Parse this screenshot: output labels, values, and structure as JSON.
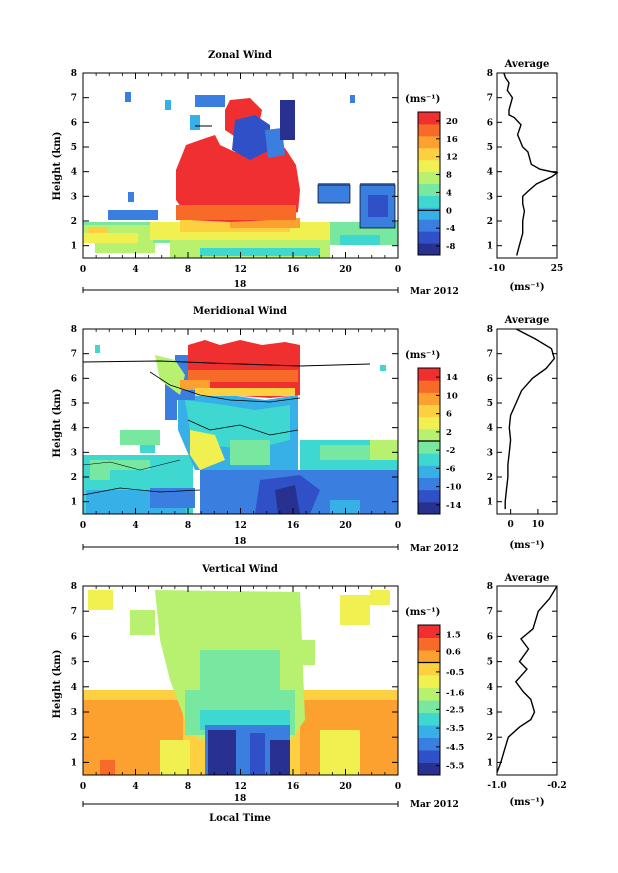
{
  "figure": {
    "footer_xlabel": "Local Time",
    "date_label": "Mar 2012",
    "day_label": "18"
  },
  "chart_data": [
    {
      "type": "heatmap",
      "title": "Zonal Wind",
      "xlabel": "",
      "ylabel": "Height (km)",
      "x_ticks": [
        "0",
        "4",
        "8",
        "12",
        "16",
        "20",
        "0"
      ],
      "x_range": [
        0,
        24
      ],
      "y_range": [
        0.5,
        8
      ],
      "y_ticks": [
        "1",
        "2",
        "3",
        "4",
        "5",
        "6",
        "7",
        "8"
      ],
      "colorbar": {
        "unit": "(ms⁻¹)",
        "ticks": [
          "20",
          "16",
          "12",
          "8",
          "4",
          "0",
          "-4",
          "-8"
        ],
        "range": [
          -10,
          22
        ],
        "colors": [
          "#283090",
          "#3050c8",
          "#3a7fe0",
          "#36b0e6",
          "#3ed8d0",
          "#78e8a0",
          "#b8f070",
          "#f0f050",
          "#fcd040",
          "#fca030",
          "#f86a28",
          "#f03030"
        ]
      },
      "profile": {
        "title": "Average",
        "x_ticks": [
          "-10",
          "25"
        ],
        "x_range": [
          -10,
          25
        ],
        "unit": "(ms⁻¹)",
        "points": [
          [
            1.5,
            0.6
          ],
          [
            3,
            1.0
          ],
          [
            5,
            1.5
          ],
          [
            5,
            2.0
          ],
          [
            6,
            2.4
          ],
          [
            5,
            2.7
          ],
          [
            5,
            3.0
          ],
          [
            8,
            3.2
          ],
          [
            13,
            3.5
          ],
          [
            22,
            3.8
          ],
          [
            25,
            3.95
          ],
          [
            15,
            4.1
          ],
          [
            10,
            4.3
          ],
          [
            8,
            4.8
          ],
          [
            5,
            5.0
          ],
          [
            2,
            5.5
          ],
          [
            4,
            5.9
          ],
          [
            0,
            6.2
          ],
          [
            -3,
            6.3
          ],
          [
            -3,
            6.5
          ],
          [
            -1,
            7.0
          ],
          [
            -4,
            7.3
          ],
          [
            -3,
            7.6
          ],
          [
            -5,
            7.8
          ],
          [
            -6,
            8.0
          ]
        ]
      }
    },
    {
      "type": "heatmap",
      "title": "Meridional Wind",
      "xlabel": "",
      "ylabel": "Height (km)",
      "x_ticks": [
        "0",
        "4",
        "8",
        "12",
        "16",
        "20",
        "0"
      ],
      "x_range": [
        0,
        24
      ],
      "y_range": [
        0.5,
        8
      ],
      "y_ticks": [
        "1",
        "2",
        "3",
        "4",
        "5",
        "6",
        "7",
        "8"
      ],
      "colorbar": {
        "unit": "(ms⁻¹)",
        "ticks": [
          "14",
          "10",
          "6",
          "2",
          "-2",
          "-6",
          "-10",
          "-14"
        ],
        "range": [
          -16,
          16
        ],
        "colors": [
          "#283090",
          "#3050c8",
          "#3a7fe0",
          "#36b0e6",
          "#3ed8d0",
          "#78e8a0",
          "#b8f070",
          "#f0f050",
          "#fcd040",
          "#fca030",
          "#f86a28",
          "#f03030"
        ]
      },
      "profile": {
        "title": "Average",
        "x_ticks": [
          "0",
          "10"
        ],
        "x_range": [
          -5,
          17
        ],
        "unit": "(ms⁻¹)",
        "points": [
          [
            -2,
            0.7
          ],
          [
            -2,
            1.0
          ],
          [
            -1.5,
            1.5
          ],
          [
            -1,
            2.0
          ],
          [
            -1,
            2.5
          ],
          [
            -0.5,
            3.0
          ],
          [
            0,
            3.5
          ],
          [
            -0.5,
            4.0
          ],
          [
            0,
            4.5
          ],
          [
            2,
            5.0
          ],
          [
            4,
            5.5
          ],
          [
            8,
            6.0
          ],
          [
            13,
            6.4
          ],
          [
            16,
            6.8
          ],
          [
            15,
            7.2
          ],
          [
            9,
            7.6
          ],
          [
            2,
            8.0
          ]
        ]
      }
    },
    {
      "type": "heatmap",
      "title": "Vertical Wind",
      "xlabel": "Local Time",
      "ylabel": "Height (km)",
      "x_ticks": [
        "0",
        "4",
        "8",
        "12",
        "16",
        "20",
        "0"
      ],
      "x_range": [
        0,
        24
      ],
      "y_range": [
        0.5,
        8
      ],
      "y_ticks": [
        "1",
        "2",
        "3",
        "4",
        "5",
        "6",
        "7",
        "8"
      ],
      "colorbar": {
        "unit": "(ms⁻¹)",
        "ticks": [
          "1.5",
          "0.6",
          "-0.5",
          "-1.6",
          "-2.5",
          "-3.5",
          "-4.5",
          "-5.5"
        ],
        "range": [
          -6,
          2
        ],
        "colors": [
          "#283090",
          "#3050c8",
          "#3a7fe0",
          "#36b0e6",
          "#3ed8d0",
          "#78e8a0",
          "#b8f070",
          "#f0f050",
          "#fcd040",
          "#fca030",
          "#f86a28",
          "#f03030"
        ]
      },
      "profile": {
        "title": "Average",
        "x_ticks": [
          "-1.0",
          "-0.2"
        ],
        "x_range": [
          -1.0,
          -0.2
        ],
        "unit": "(ms⁻¹)",
        "points": [
          [
            -1.0,
            0.6
          ],
          [
            -0.95,
            1.0
          ],
          [
            -0.9,
            1.5
          ],
          [
            -0.85,
            2.0
          ],
          [
            -0.7,
            2.4
          ],
          [
            -0.55,
            2.7
          ],
          [
            -0.5,
            3.0
          ],
          [
            -0.55,
            3.5
          ],
          [
            -0.65,
            3.8
          ],
          [
            -0.75,
            4.2
          ],
          [
            -0.6,
            4.7
          ],
          [
            -0.7,
            5.0
          ],
          [
            -0.58,
            5.5
          ],
          [
            -0.68,
            5.9
          ],
          [
            -0.52,
            6.3
          ],
          [
            -0.45,
            7.0
          ],
          [
            -0.3,
            7.5
          ],
          [
            -0.2,
            8.0
          ]
        ]
      }
    }
  ]
}
